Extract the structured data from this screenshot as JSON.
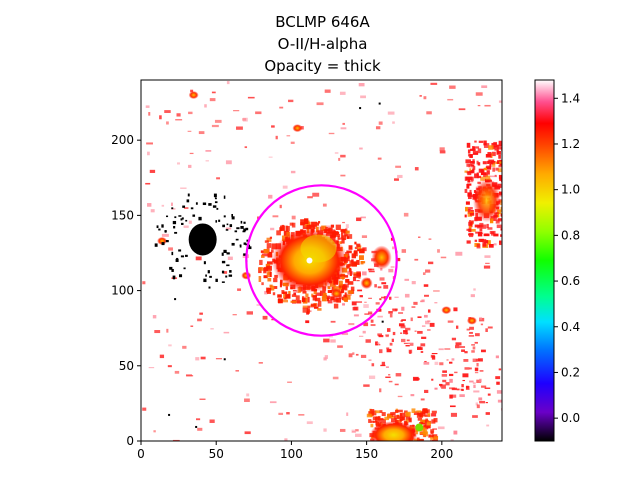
{
  "chart_data": {
    "type": "heatmap",
    "title_lines": [
      "BCLMP 646A",
      "O-II/H-alpha",
      "Opacity = thick"
    ],
    "xlabel": "",
    "ylabel": "",
    "xlim": [
      0,
      240
    ],
    "ylim": [
      0,
      240
    ],
    "x_ticks": [
      0,
      50,
      100,
      150,
      200
    ],
    "y_ticks": [
      0,
      50,
      100,
      150,
      200
    ],
    "colorbar": {
      "colormap": "gist_ncar-like",
      "range": [
        -0.1,
        1.48
      ],
      "ticks": [
        0.0,
        0.2,
        0.4,
        0.6,
        0.8,
        1.0,
        1.2,
        1.4
      ],
      "tick_labels": [
        "0.0",
        "0.2",
        "0.4",
        "0.6",
        "0.8",
        "1.0",
        "1.2",
        "1.4"
      ]
    },
    "aperture_circle": {
      "center": [
        120,
        120
      ],
      "radius": 50,
      "color": "#ff00ff"
    },
    "background_color": "#ffffff",
    "features": [
      {
        "name": "central-emission-region",
        "x": 115,
        "y": 120,
        "value_peak": 0.9
      },
      {
        "name": "low-value-blob",
        "x": 40,
        "y": 133,
        "value": -0.1
      },
      {
        "name": "bottom-emission-region",
        "x": 170,
        "y": 5,
        "value_peak": 0.9
      },
      {
        "name": "right-edge-emission",
        "x": 230,
        "y": 170,
        "value_peak": 1.0
      }
    ]
  }
}
